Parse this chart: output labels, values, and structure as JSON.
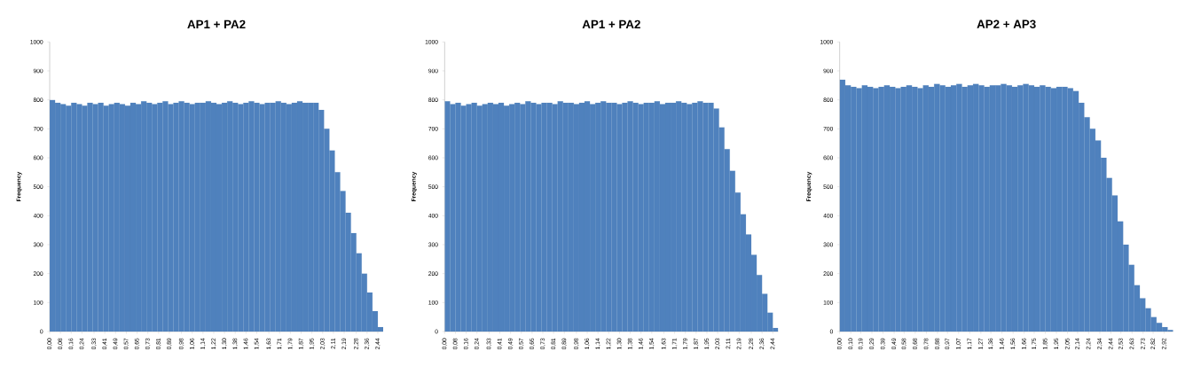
{
  "chart_data": [
    {
      "type": "histogram",
      "title": "AP1 + PA2",
      "ylabel": "Frequency",
      "color": "#4f81bd",
      "bins": [
        0,
        0.04,
        0.08,
        0.12,
        0.16,
        0.2,
        0.24,
        0.28,
        0.32,
        0.36,
        0.4,
        0.44,
        0.48,
        0.52,
        0.56,
        0.6,
        0.64,
        0.68,
        0.72,
        0.76,
        0.8,
        0.84,
        0.88,
        0.92,
        0.96,
        1,
        1.04,
        1.08,
        1.12,
        1.16,
        1.2,
        1.24,
        1.28,
        1.32,
        1.36,
        1.4,
        1.44,
        1.48,
        1.52,
        1.56,
        1.6,
        1.64,
        1.68,
        1.72,
        1.76,
        1.8,
        1.84,
        1.88,
        1.92,
        1.96,
        2,
        2.04,
        2.08,
        2.12,
        2.16,
        2.2,
        2.24,
        2.28,
        2.32,
        2.36,
        2.4,
        2.44,
        2.48
      ],
      "values": [
        800,
        790,
        785,
        780,
        790,
        785,
        780,
        790,
        785,
        790,
        780,
        785,
        790,
        785,
        780,
        790,
        785,
        795,
        790,
        785,
        790,
        795,
        785,
        790,
        795,
        790,
        785,
        790,
        790,
        795,
        790,
        785,
        790,
        795,
        790,
        785,
        790,
        795,
        790,
        785,
        790,
        790,
        795,
        790,
        785,
        790,
        795,
        790,
        790,
        790,
        765,
        700,
        625,
        550,
        485,
        410,
        340,
        270,
        200,
        135,
        70,
        15
      ],
      "xlim": [
        0,
        2.48
      ],
      "ylim": [
        0,
        1000
      ],
      "xticks": [
        {
          "value": 0,
          "label": "0,00"
        },
        {
          "value": 0.08,
          "label": "0,08"
        },
        {
          "value": 0.16,
          "label": "0,16"
        },
        {
          "value": 0.24,
          "label": "0,24"
        },
        {
          "value": 0.33,
          "label": "0,33"
        },
        {
          "value": 0.41,
          "label": "0,41"
        },
        {
          "value": 0.49,
          "label": "0,49"
        },
        {
          "value": 0.57,
          "label": "0,57"
        },
        {
          "value": 0.65,
          "label": "0,65"
        },
        {
          "value": 0.73,
          "label": "0,73"
        },
        {
          "value": 0.81,
          "label": "0,81"
        },
        {
          "value": 0.89,
          "label": "0,89"
        },
        {
          "value": 0.98,
          "label": "0,98"
        },
        {
          "value": 1.06,
          "label": "1,06"
        },
        {
          "value": 1.14,
          "label": "1,14"
        },
        {
          "value": 1.22,
          "label": "1,22"
        },
        {
          "value": 1.3,
          "label": "1,30"
        },
        {
          "value": 1.38,
          "label": "1,38"
        },
        {
          "value": 1.46,
          "label": "1,46"
        },
        {
          "value": 1.54,
          "label": "1,54"
        },
        {
          "value": 1.63,
          "label": "1,63"
        },
        {
          "value": 1.71,
          "label": "1,71"
        },
        {
          "value": 1.79,
          "label": "1,79"
        },
        {
          "value": 1.87,
          "label": "1,87"
        },
        {
          "value": 1.95,
          "label": "1,95"
        },
        {
          "value": 2.03,
          "label": "2,03"
        },
        {
          "value": 2.11,
          "label": "2,11"
        },
        {
          "value": 2.19,
          "label": "2,19"
        },
        {
          "value": 2.28,
          "label": "2,28"
        },
        {
          "value": 2.36,
          "label": "2,36"
        },
        {
          "value": 2.44,
          "label": "2,44"
        }
      ],
      "yticks": [
        0,
        100,
        200,
        300,
        400,
        500,
        600,
        700,
        800,
        900,
        1000
      ]
    },
    {
      "type": "histogram",
      "title": "AP1 + PA2",
      "ylabel": "Frequency",
      "color": "#4f81bd",
      "bins": [
        0,
        0.04,
        0.08,
        0.12,
        0.16,
        0.2,
        0.24,
        0.28,
        0.32,
        0.36,
        0.4,
        0.44,
        0.48,
        0.52,
        0.56,
        0.6,
        0.64,
        0.68,
        0.72,
        0.76,
        0.8,
        0.84,
        0.88,
        0.92,
        0.96,
        1,
        1.04,
        1.08,
        1.12,
        1.16,
        1.2,
        1.24,
        1.28,
        1.32,
        1.36,
        1.4,
        1.44,
        1.48,
        1.52,
        1.56,
        1.6,
        1.64,
        1.68,
        1.72,
        1.76,
        1.8,
        1.84,
        1.88,
        1.92,
        1.96,
        2,
        2.04,
        2.08,
        2.12,
        2.16,
        2.2,
        2.24,
        2.28,
        2.32,
        2.36,
        2.4,
        2.44,
        2.48
      ],
      "values": [
        795,
        785,
        790,
        780,
        785,
        790,
        780,
        785,
        790,
        785,
        790,
        780,
        785,
        790,
        785,
        795,
        790,
        785,
        790,
        790,
        785,
        795,
        790,
        790,
        785,
        790,
        795,
        785,
        790,
        795,
        790,
        790,
        785,
        790,
        795,
        790,
        785,
        790,
        790,
        795,
        785,
        790,
        790,
        795,
        790,
        785,
        790,
        795,
        790,
        790,
        770,
        705,
        630,
        555,
        480,
        405,
        335,
        265,
        195,
        130,
        65,
        12
      ],
      "xlim": [
        0,
        2.48
      ],
      "ylim": [
        0,
        1000
      ],
      "xticks": [
        {
          "value": 0,
          "label": "0,00"
        },
        {
          "value": 0.08,
          "label": "0,08"
        },
        {
          "value": 0.16,
          "label": "0,16"
        },
        {
          "value": 0.24,
          "label": "0,24"
        },
        {
          "value": 0.33,
          "label": "0,33"
        },
        {
          "value": 0.41,
          "label": "0,41"
        },
        {
          "value": 0.49,
          "label": "0,49"
        },
        {
          "value": 0.57,
          "label": "0,57"
        },
        {
          "value": 0.65,
          "label": "0,65"
        },
        {
          "value": 0.73,
          "label": "0,73"
        },
        {
          "value": 0.81,
          "label": "0,81"
        },
        {
          "value": 0.89,
          "label": "0,89"
        },
        {
          "value": 0.98,
          "label": "0,98"
        },
        {
          "value": 1.06,
          "label": "1,06"
        },
        {
          "value": 1.14,
          "label": "1,14"
        },
        {
          "value": 1.22,
          "label": "1,22"
        },
        {
          "value": 1.3,
          "label": "1,30"
        },
        {
          "value": 1.38,
          "label": "1,38"
        },
        {
          "value": 1.46,
          "label": "1,46"
        },
        {
          "value": 1.54,
          "label": "1,54"
        },
        {
          "value": 1.63,
          "label": "1,63"
        },
        {
          "value": 1.71,
          "label": "1,71"
        },
        {
          "value": 1.79,
          "label": "1,79"
        },
        {
          "value": 1.87,
          "label": "1,87"
        },
        {
          "value": 1.95,
          "label": "1,95"
        },
        {
          "value": 2.03,
          "label": "2,03"
        },
        {
          "value": 2.11,
          "label": "2,11"
        },
        {
          "value": 2.19,
          "label": "2,19"
        },
        {
          "value": 2.28,
          "label": "2,28"
        },
        {
          "value": 2.36,
          "label": "2,36"
        },
        {
          "value": 2.44,
          "label": "2,44"
        }
      ],
      "yticks": [
        0,
        100,
        200,
        300,
        400,
        500,
        600,
        700,
        800,
        900,
        1000
      ]
    },
    {
      "type": "histogram",
      "title": "AP2 + AP3",
      "ylabel": "Frequency",
      "color": "#4f81bd",
      "bins": [
        0,
        0.05,
        0.1,
        0.15,
        0.2,
        0.25,
        0.3,
        0.35,
        0.4,
        0.45,
        0.5,
        0.55,
        0.6,
        0.65,
        0.7,
        0.75,
        0.8,
        0.85,
        0.9,
        0.95,
        1,
        1.05,
        1.1,
        1.15,
        1.2,
        1.25,
        1.3,
        1.35,
        1.4,
        1.45,
        1.5,
        1.55,
        1.6,
        1.65,
        1.7,
        1.75,
        1.8,
        1.85,
        1.9,
        1.95,
        2,
        2.05,
        2.1,
        2.15,
        2.2,
        2.25,
        2.3,
        2.35,
        2.4,
        2.45,
        2.5,
        2.55,
        2.6,
        2.65,
        2.7,
        2.75,
        2.8,
        2.85,
        2.9,
        2.95,
        3
      ],
      "values": [
        870,
        850,
        845,
        840,
        850,
        845,
        840,
        845,
        850,
        845,
        840,
        845,
        850,
        845,
        840,
        850,
        845,
        855,
        850,
        845,
        850,
        855,
        845,
        850,
        855,
        850,
        845,
        850,
        850,
        855,
        850,
        845,
        850,
        855,
        850,
        845,
        850,
        845,
        840,
        845,
        845,
        840,
        830,
        790,
        740,
        700,
        660,
        600,
        530,
        470,
        380,
        300,
        230,
        160,
        115,
        80,
        50,
        30,
        15,
        5
      ],
      "xlim": [
        0,
        3
      ],
      "ylim": [
        0,
        1000
      ],
      "xticks": [
        {
          "value": 0,
          "label": "0,00"
        },
        {
          "value": 0.1,
          "label": "0,10"
        },
        {
          "value": 0.19,
          "label": "0,19"
        },
        {
          "value": 0.29,
          "label": "0,29"
        },
        {
          "value": 0.39,
          "label": "0,39"
        },
        {
          "value": 0.49,
          "label": "0,49"
        },
        {
          "value": 0.58,
          "label": "0,58"
        },
        {
          "value": 0.68,
          "label": "0,68"
        },
        {
          "value": 0.78,
          "label": "0,78"
        },
        {
          "value": 0.88,
          "label": "0,88"
        },
        {
          "value": 0.97,
          "label": "0,97"
        },
        {
          "value": 1.07,
          "label": "1,07"
        },
        {
          "value": 1.17,
          "label": "1,17"
        },
        {
          "value": 1.27,
          "label": "1,27"
        },
        {
          "value": 1.36,
          "label": "1,36"
        },
        {
          "value": 1.46,
          "label": "1,46"
        },
        {
          "value": 1.56,
          "label": "1,56"
        },
        {
          "value": 1.66,
          "label": "1,66"
        },
        {
          "value": 1.75,
          "label": "1,75"
        },
        {
          "value": 1.85,
          "label": "1,85"
        },
        {
          "value": 1.95,
          "label": "1,95"
        },
        {
          "value": 2.05,
          "label": "2,05"
        },
        {
          "value": 2.14,
          "label": "2,14"
        },
        {
          "value": 2.24,
          "label": "2,24"
        },
        {
          "value": 2.34,
          "label": "2,34"
        },
        {
          "value": 2.44,
          "label": "2,44"
        },
        {
          "value": 2.53,
          "label": "2,53"
        },
        {
          "value": 2.63,
          "label": "2,63"
        },
        {
          "value": 2.73,
          "label": "2,73"
        },
        {
          "value": 2.82,
          "label": "2,82"
        },
        {
          "value": 2.92,
          "label": "2,92"
        }
      ],
      "yticks": [
        0,
        100,
        200,
        300,
        400,
        500,
        600,
        700,
        800,
        900,
        1000
      ]
    }
  ]
}
